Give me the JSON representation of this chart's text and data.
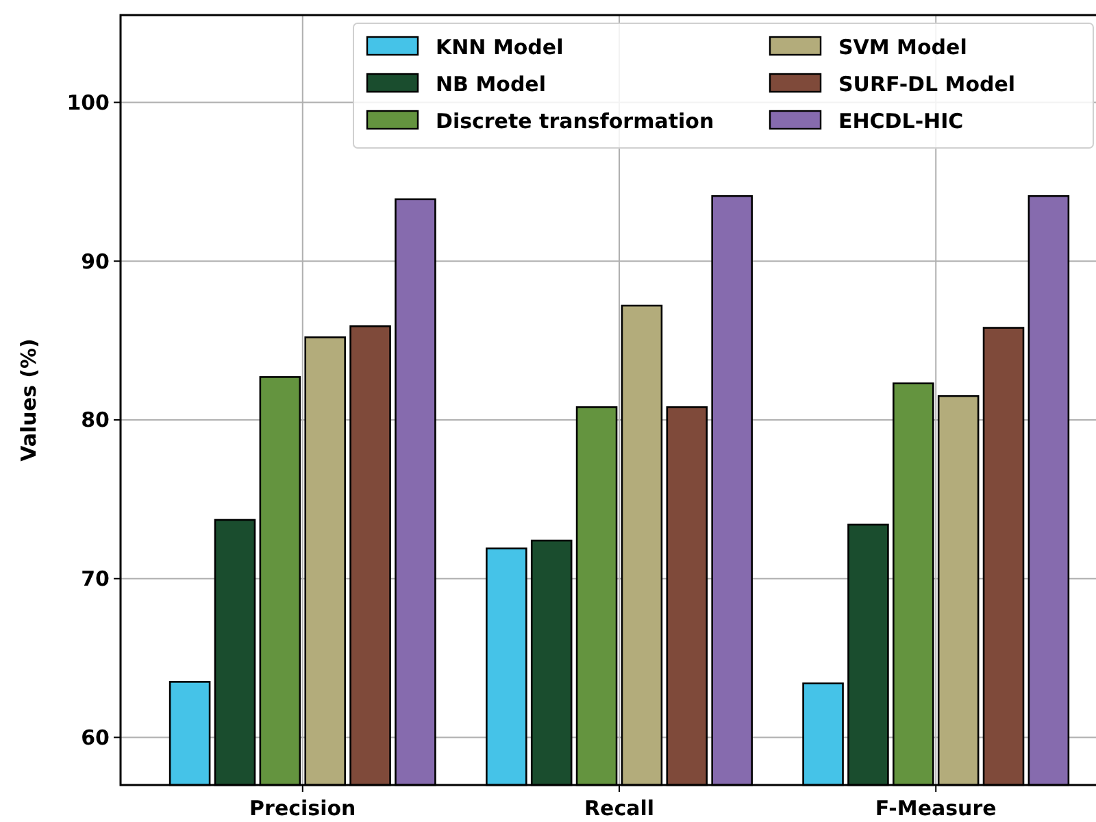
{
  "chart_data": {
    "type": "bar",
    "ylabel": "Values (%)",
    "categories": [
      "Precision",
      "Recall",
      "F-Measure"
    ],
    "series": [
      {
        "name": "KNN Model",
        "color": "#45c3e8",
        "values": [
          63.5,
          71.9,
          63.4
        ]
      },
      {
        "name": "NB Model",
        "color": "#1a4d2e",
        "values": [
          73.7,
          72.4,
          73.4
        ]
      },
      {
        "name": "Discrete transformation",
        "color": "#64943f",
        "values": [
          82.7,
          80.8,
          82.3
        ]
      },
      {
        "name": "SVM Model",
        "color": "#b3ac7b",
        "values": [
          85.2,
          87.2,
          81.5
        ]
      },
      {
        "name": "SURF-DL Model",
        "color": "#7f4a3a",
        "values": [
          85.9,
          80.8,
          85.8
        ]
      },
      {
        "name": "EHCDL-HIC",
        "color": "#866bae",
        "values": [
          93.9,
          94.1,
          94.1
        ]
      }
    ],
    "ylim": [
      57,
      105.5
    ],
    "yticks": [
      60,
      70,
      80,
      90,
      100
    ],
    "grid": true,
    "legend": "top right"
  }
}
